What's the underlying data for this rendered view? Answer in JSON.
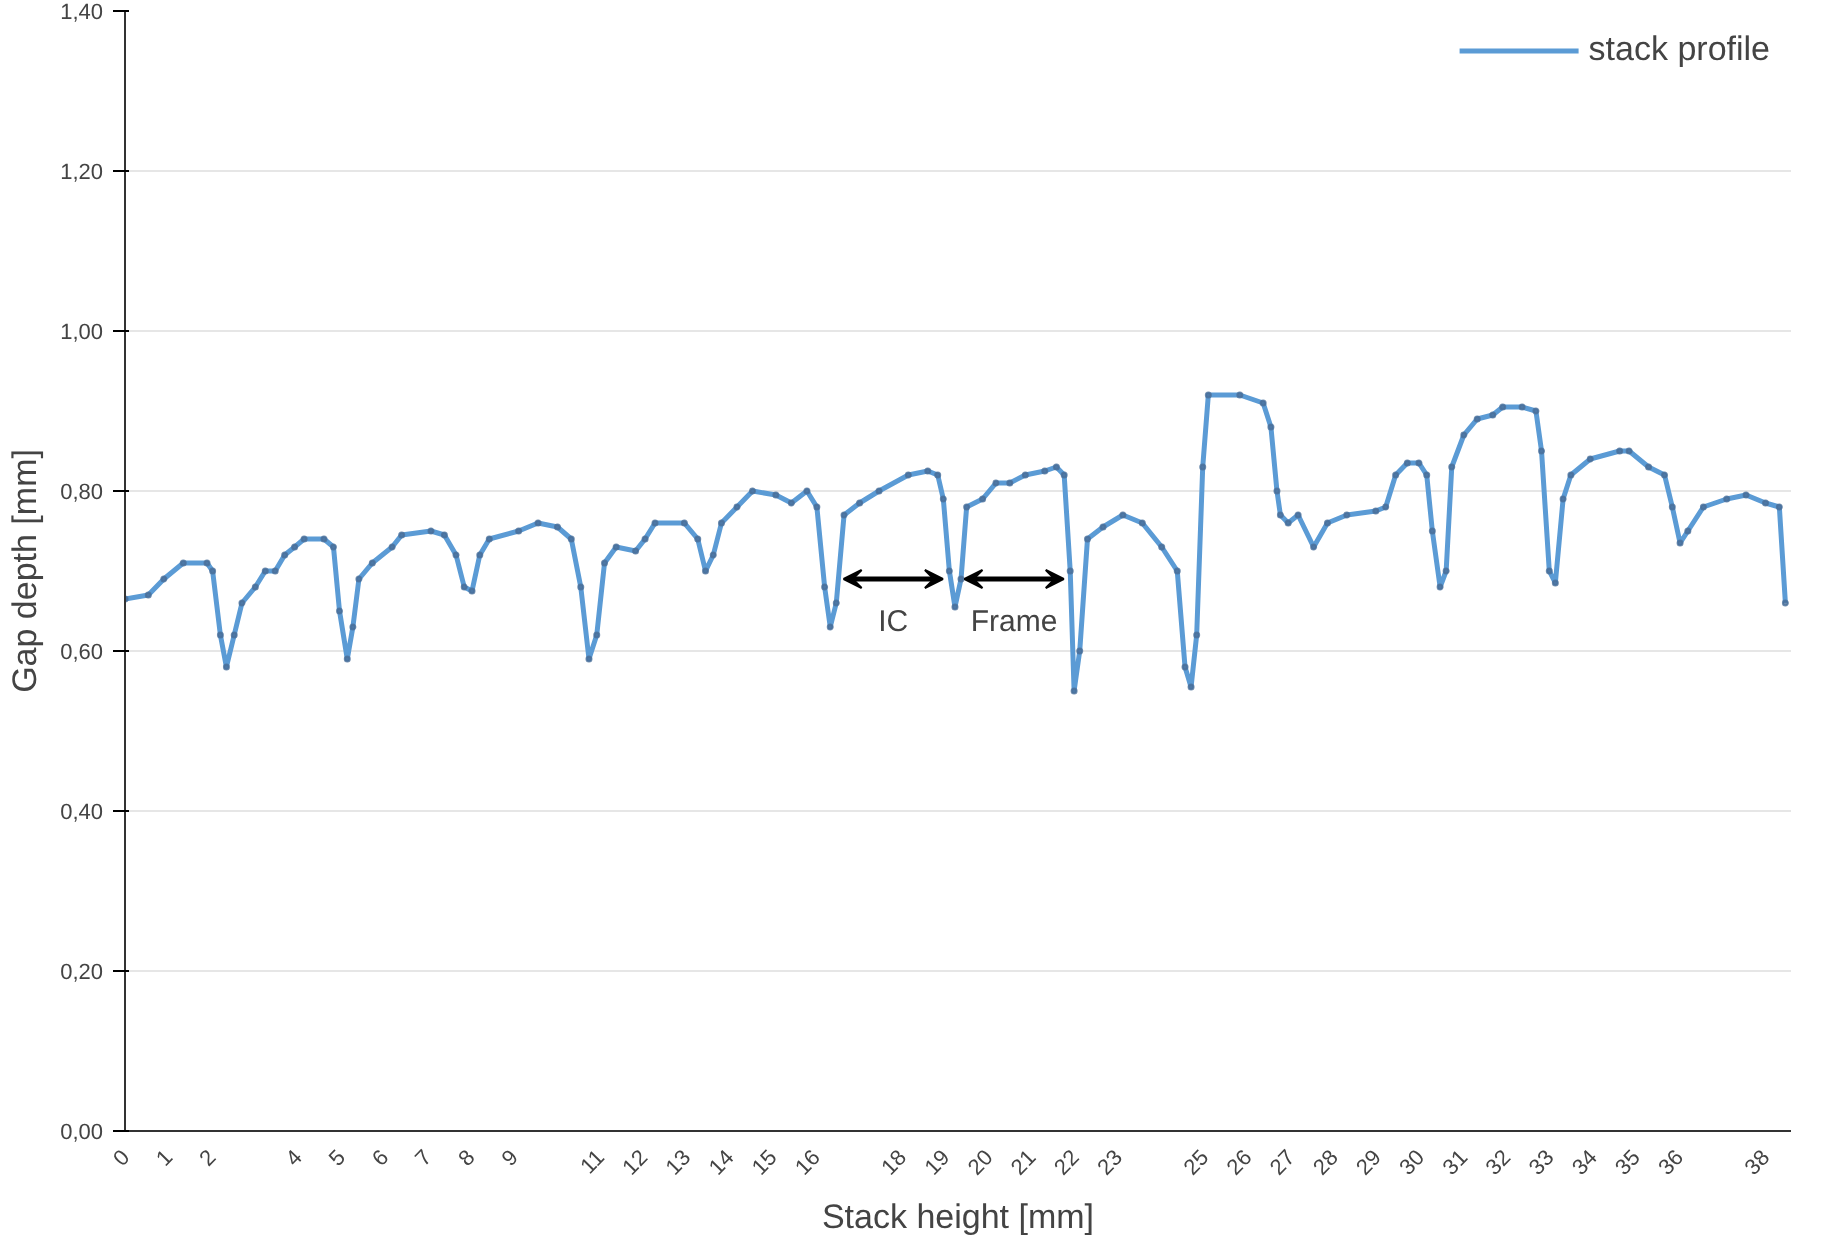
{
  "chart_data": {
    "type": "line",
    "xlabel": "Stack height [mm]",
    "ylabel": "Gap depth [mm]",
    "xlim": [
      0,
      38.6
    ],
    "ylim": [
      0,
      1.4
    ],
    "xticks": [
      0,
      1,
      2,
      4,
      5,
      6,
      7,
      8,
      9,
      11,
      12,
      13,
      14,
      15,
      16,
      18,
      19,
      20,
      21,
      22,
      23,
      25,
      26,
      27,
      28,
      29,
      30,
      31,
      32,
      33,
      34,
      35,
      36,
      38
    ],
    "yticks": [
      {
        "value": 0,
        "label": "0,00"
      },
      {
        "value": 0.2,
        "label": "0,20"
      },
      {
        "value": 0.4,
        "label": "0,40"
      },
      {
        "value": 0.6,
        "label": "0,60"
      },
      {
        "value": 0.8,
        "label": "0,80"
      },
      {
        "value": 1.0,
        "label": "1,00"
      },
      {
        "value": 1.2,
        "label": "1,20"
      },
      {
        "value": 1.4,
        "label": "1,40"
      }
    ],
    "grid": "y",
    "legend": "top right",
    "marker": "circle",
    "line_style": "solid",
    "annotations": [
      "IC",
      "Frame"
    ],
    "series": [
      {
        "name": "stack profile",
        "color": "#5b9bd5",
        "x": [
          0,
          0.54,
          0.9,
          1.35,
          1.9,
          2.03,
          2.21,
          2.35,
          2.53,
          2.71,
          3.02,
          3.25,
          3.48,
          3.7,
          3.93,
          4.15,
          4.61,
          4.83,
          4.97,
          5.15,
          5.28,
          5.42,
          5.73,
          6.19,
          6.41,
          7.09,
          7.4,
          7.67,
          7.86,
          8.04,
          8.22,
          8.44,
          9.12,
          9.57,
          10.02,
          10.34,
          10.56,
          10.75,
          10.93,
          11.11,
          11.38,
          11.83,
          12.05,
          12.28,
          12.96,
          13.27,
          13.45,
          13.63,
          13.82,
          14.18,
          14.54,
          15.08,
          15.44,
          15.8,
          16.03,
          16.21,
          16.34,
          16.48,
          16.66,
          17.02,
          17.47,
          18.15,
          18.6,
          18.83,
          18.96,
          19.1,
          19.23,
          19.37,
          19.5,
          19.87,
          20.18,
          20.5,
          20.86,
          21.31,
          21.58,
          21.76,
          21.9,
          21.99,
          22.12,
          22.3,
          22.66,
          23.12,
          23.57,
          24.02,
          24.38,
          24.56,
          24.7,
          24.83,
          24.97,
          25.1,
          25.83,
          26.37,
          26.55,
          26.69,
          26.77,
          26.95,
          27.18,
          27.54,
          27.86,
          28.31,
          28.98,
          29.21,
          29.44,
          29.71,
          29.98,
          30.16,
          30.29,
          30.47,
          30.61,
          30.74,
          31.02,
          31.33,
          31.69,
          31.92,
          32.37,
          32.69,
          32.82,
          33.0,
          33.14,
          33.32,
          33.5,
          33.95,
          34.63,
          34.85,
          35.3,
          35.67,
          35.85,
          36.03,
          36.21,
          36.57,
          37.11,
          37.56,
          38.01,
          38.33,
          38.47
        ],
        "values": [
          0.665,
          0.67,
          0.69,
          0.71,
          0.71,
          0.7,
          0.62,
          0.58,
          0.62,
          0.66,
          0.68,
          0.7,
          0.7,
          0.72,
          0.73,
          0.74,
          0.74,
          0.73,
          0.65,
          0.59,
          0.63,
          0.69,
          0.71,
          0.73,
          0.745,
          0.75,
          0.745,
          0.72,
          0.68,
          0.675,
          0.72,
          0.74,
          0.75,
          0.76,
          0.755,
          0.74,
          0.68,
          0.59,
          0.62,
          0.71,
          0.73,
          0.725,
          0.74,
          0.76,
          0.76,
          0.74,
          0.7,
          0.72,
          0.76,
          0.78,
          0.8,
          0.795,
          0.785,
          0.8,
          0.78,
          0.68,
          0.63,
          0.66,
          0.77,
          0.785,
          0.8,
          0.82,
          0.825,
          0.82,
          0.79,
          0.7,
          0.655,
          0.69,
          0.78,
          0.79,
          0.81,
          0.81,
          0.82,
          0.825,
          0.83,
          0.82,
          0.7,
          0.55,
          0.6,
          0.74,
          0.755,
          0.77,
          0.76,
          0.73,
          0.7,
          0.58,
          0.555,
          0.62,
          0.83,
          0.92,
          0.92,
          0.91,
          0.88,
          0.8,
          0.77,
          0.76,
          0.77,
          0.73,
          0.76,
          0.77,
          0.775,
          0.78,
          0.82,
          0.835,
          0.835,
          0.82,
          0.75,
          0.68,
          0.7,
          0.83,
          0.87,
          0.89,
          0.895,
          0.905,
          0.905,
          0.9,
          0.85,
          0.7,
          0.685,
          0.79,
          0.82,
          0.84,
          0.85,
          0.85,
          0.83,
          0.82,
          0.78,
          0.735,
          0.75,
          0.78,
          0.79,
          0.795,
          0.785,
          0.78,
          0.66
        ]
      }
    ]
  }
}
